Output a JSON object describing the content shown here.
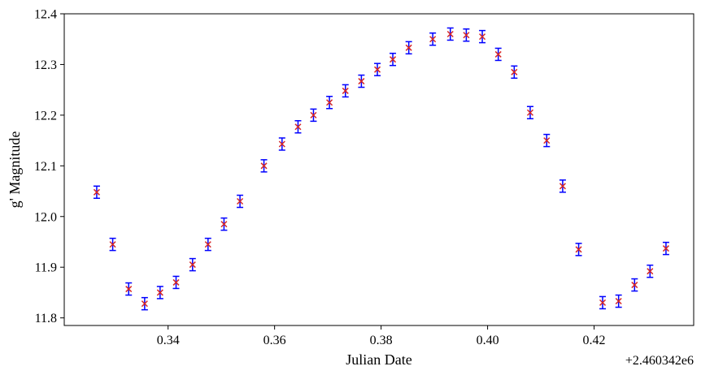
{
  "chart_data": {
    "type": "scatter",
    "title": "",
    "xlabel": "Julian Date",
    "ylabel": "g' Magnitude",
    "x_offset_label": "+2.460342e6",
    "xlim": [
      0.3205,
      0.4387
    ],
    "ylim": [
      11.785,
      12.4
    ],
    "x_ticks": [
      0.34,
      0.36,
      0.38,
      0.4,
      0.42
    ],
    "x_tick_labels": [
      "0.34",
      "0.36",
      "0.38",
      "0.40",
      "0.42"
    ],
    "y_ticks": [
      11.8,
      11.9,
      12.0,
      12.1,
      12.2,
      12.3,
      12.4
    ],
    "y_tick_labels": [
      "11.8",
      "11.9",
      "12.0",
      "12.1",
      "12.2",
      "12.3",
      "12.4"
    ],
    "grid": false,
    "marker_color": "#d62728",
    "errorbar_color": "#0000ff",
    "points": [
      {
        "x": 0.3266,
        "y": 12.048,
        "err": 0.012
      },
      {
        "x": 0.3296,
        "y": 11.945,
        "err": 0.012
      },
      {
        "x": 0.3326,
        "y": 11.857,
        "err": 0.012
      },
      {
        "x": 0.3356,
        "y": 11.828,
        "err": 0.012
      },
      {
        "x": 0.3385,
        "y": 11.85,
        "err": 0.012
      },
      {
        "x": 0.3415,
        "y": 11.87,
        "err": 0.012
      },
      {
        "x": 0.3446,
        "y": 11.905,
        "err": 0.012
      },
      {
        "x": 0.3475,
        "y": 11.945,
        "err": 0.012
      },
      {
        "x": 0.3505,
        "y": 11.985,
        "err": 0.012
      },
      {
        "x": 0.3535,
        "y": 12.03,
        "err": 0.012
      },
      {
        "x": 0.358,
        "y": 12.1,
        "err": 0.012
      },
      {
        "x": 0.3614,
        "y": 12.143,
        "err": 0.012
      },
      {
        "x": 0.3644,
        "y": 12.177,
        "err": 0.012
      },
      {
        "x": 0.3673,
        "y": 12.2,
        "err": 0.012
      },
      {
        "x": 0.3703,
        "y": 12.225,
        "err": 0.012
      },
      {
        "x": 0.3733,
        "y": 12.248,
        "err": 0.012
      },
      {
        "x": 0.3763,
        "y": 12.267,
        "err": 0.012
      },
      {
        "x": 0.3793,
        "y": 12.29,
        "err": 0.012
      },
      {
        "x": 0.3822,
        "y": 12.31,
        "err": 0.012
      },
      {
        "x": 0.3852,
        "y": 12.333,
        "err": 0.012
      },
      {
        "x": 0.3897,
        "y": 12.35,
        "err": 0.012
      },
      {
        "x": 0.393,
        "y": 12.36,
        "err": 0.012
      },
      {
        "x": 0.396,
        "y": 12.358,
        "err": 0.012
      },
      {
        "x": 0.399,
        "y": 12.355,
        "err": 0.012
      },
      {
        "x": 0.402,
        "y": 12.32,
        "err": 0.012
      },
      {
        "x": 0.405,
        "y": 12.285,
        "err": 0.012
      },
      {
        "x": 0.408,
        "y": 12.205,
        "err": 0.012
      },
      {
        "x": 0.4111,
        "y": 12.15,
        "err": 0.012
      },
      {
        "x": 0.4141,
        "y": 12.06,
        "err": 0.012
      },
      {
        "x": 0.4171,
        "y": 11.935,
        "err": 0.012
      },
      {
        "x": 0.4216,
        "y": 11.83,
        "err": 0.012
      },
      {
        "x": 0.4246,
        "y": 11.833,
        "err": 0.012
      },
      {
        "x": 0.4276,
        "y": 11.865,
        "err": 0.012
      },
      {
        "x": 0.4305,
        "y": 11.892,
        "err": 0.012
      },
      {
        "x": 0.4335,
        "y": 11.937,
        "err": 0.012
      }
    ]
  }
}
